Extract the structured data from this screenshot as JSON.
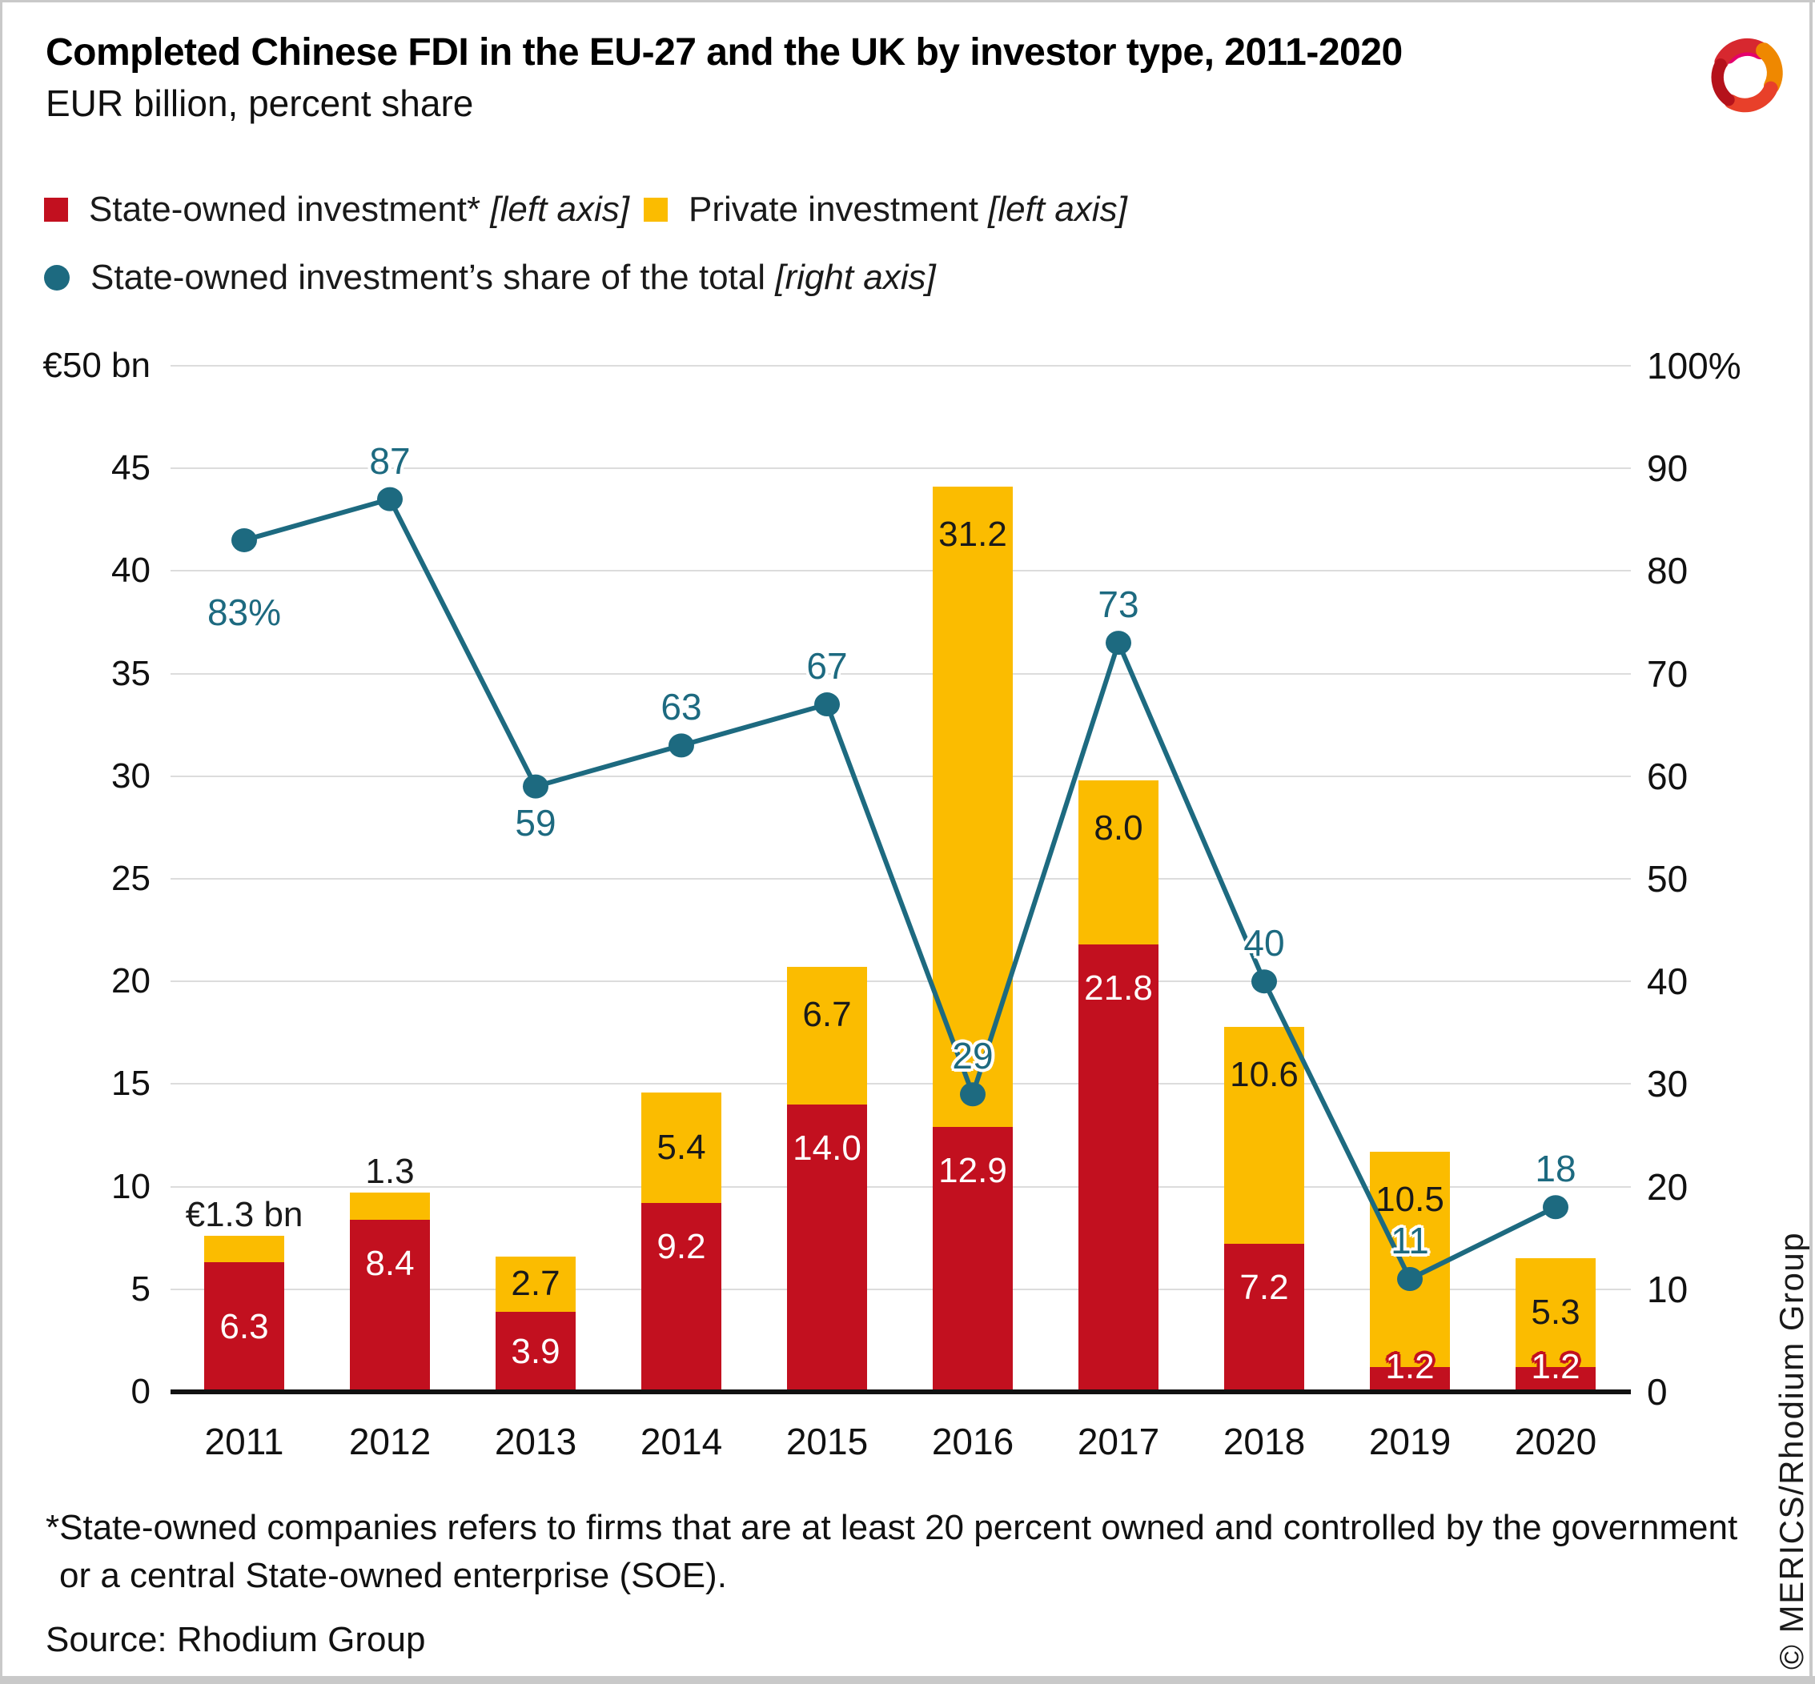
{
  "page": {
    "title": "Completed Chinese FDI in the EU-27 and the UK by investor type, 2011-2020",
    "subtitle": "EUR billion, percent share",
    "footnote_line1": "*State-owned companies refers to firms that are at least 20 percent owned and controlled by the government",
    "footnote_line2": "or a central State-owned enterprise (SOE).",
    "source": "Source: Rhodium Group",
    "copyright_vertical": "© MERICS/Rhodium Group"
  },
  "colors": {
    "state_red": "#c2101f",
    "private_yellow": "#fbbc00",
    "share_teal": "#1d6a80",
    "gridline": "#dcdcdc",
    "axis_black": "#111111",
    "frame_gray": "#c9c9c9",
    "logo_red": "#d7282f",
    "logo_orange": "#ef8800",
    "logo_pink": "#e5006d",
    "logo_darkred": "#b5121b"
  },
  "legend": [
    {
      "swatch": "square",
      "color": "#c2101f",
      "label": "State-owned investment*",
      "axis_note": "[left axis]"
    },
    {
      "swatch": "square",
      "color": "#fbbc00",
      "label": "Private investment",
      "axis_note": "[left axis]"
    },
    {
      "swatch": "circle",
      "color": "#1d6a80",
      "label": "State-owned investment’s share of the total",
      "axis_note": "[right axis]"
    }
  ],
  "chart_data": {
    "type": "bar",
    "subtype": "stacked-bars-with-percent-line",
    "title": "Completed Chinese FDI in the EU-27 and the UK by investor type, 2011-2020",
    "subtitle": "EUR billion, percent share",
    "grid": true,
    "legend_position": "top-left",
    "categories": [
      "2011",
      "2012",
      "2013",
      "2014",
      "2015",
      "2016",
      "2017",
      "2018",
      "2019",
      "2020"
    ],
    "series": [
      {
        "name": "State-owned investment",
        "type": "bar",
        "stack_order": 0,
        "axis": "left",
        "color": "#c2101f",
        "values": [
          6.3,
          8.4,
          3.9,
          9.2,
          14.0,
          12.9,
          21.8,
          7.2,
          1.2,
          1.2
        ],
        "labels": [
          "6.3",
          "8.4",
          "3.9",
          "9.2",
          "14.0",
          "12.9",
          "21.8",
          "7.2",
          "1.2",
          "1.2"
        ]
      },
      {
        "name": "Private investment",
        "type": "bar",
        "stack_order": 1,
        "axis": "left",
        "color": "#fbbc00",
        "values": [
          1.3,
          1.3,
          2.7,
          5.4,
          6.7,
          31.2,
          8.0,
          10.6,
          10.5,
          5.3
        ],
        "labels": [
          "€1.3 bn",
          "1.3",
          "2.7",
          "5.4",
          "6.7",
          "31.2",
          "8.0",
          "10.6",
          "10.5",
          "5.3"
        ],
        "label_placement": [
          "above",
          "above",
          "inside",
          "inside",
          "inside",
          "inside",
          "inside",
          "inside",
          "inside",
          "inside"
        ]
      },
      {
        "name": "State-owned investment's share of the total",
        "type": "line",
        "axis": "right",
        "color": "#1d6a80",
        "values": [
          83,
          87,
          59,
          63,
          67,
          29,
          73,
          40,
          11,
          18
        ],
        "labels": [
          "83%",
          "87",
          "59",
          "63",
          "67",
          "29",
          "73",
          "40",
          "11",
          "18"
        ],
        "label_pos": [
          "below-far",
          "above",
          "below",
          "above",
          "above",
          "above",
          "above",
          "above",
          "above",
          "above"
        ]
      }
    ],
    "left_axis": {
      "range": [
        0,
        50
      ],
      "ticks": [
        {
          "label": "€50 bn",
          "value": 50
        },
        {
          "label": "45",
          "value": 45
        },
        {
          "label": "40",
          "value": 40
        },
        {
          "label": "35",
          "value": 35
        },
        {
          "label": "30",
          "value": 30
        },
        {
          "label": "25",
          "value": 25
        },
        {
          "label": "20",
          "value": 20
        },
        {
          "label": "15",
          "value": 15
        },
        {
          "label": "10",
          "value": 10
        },
        {
          "label": "5",
          "value": 5
        },
        {
          "label": "0",
          "value": 0
        }
      ]
    },
    "right_axis": {
      "range": [
        0,
        100
      ],
      "ticks": [
        {
          "label": "100%",
          "value": 100
        },
        {
          "label": "90",
          "value": 90
        },
        {
          "label": "80",
          "value": 80
        },
        {
          "label": "70",
          "value": 70
        },
        {
          "label": "60",
          "value": 60
        },
        {
          "label": "50",
          "value": 50
        },
        {
          "label": "40",
          "value": 40
        },
        {
          "label": "30",
          "value": 30
        },
        {
          "label": "20",
          "value": 20
        },
        {
          "label": "10",
          "value": 10
        },
        {
          "label": "0",
          "value": 0
        }
      ]
    }
  }
}
